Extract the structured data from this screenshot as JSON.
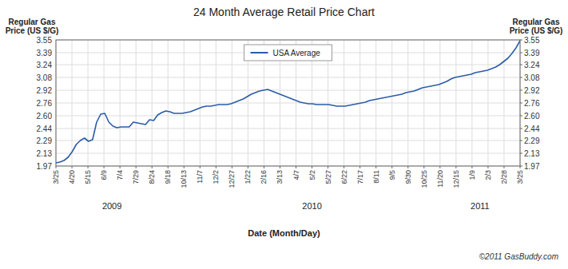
{
  "chart_data": {
    "type": "line",
    "title": "24 Month Average Retail Price Chart",
    "ylabel": "Regular Gas\nPrice (US $/G)",
    "y2label": "Regular Gas\nPrice (US $/G)",
    "xlabel": "Date (Month/Day)",
    "annotations": [
      {
        "text": "2009",
        "x": 3.5
      },
      {
        "text": "2010",
        "x": 16.0
      },
      {
        "text": "2011",
        "x": 26.5
      },
      {
        "text": "©2011 GasBuddy.com"
      }
    ],
    "grid": true,
    "legend": "upper center",
    "xlim": [
      0,
      29
    ],
    "xticks": [
      {
        "value": 0,
        "label": "3/25"
      },
      {
        "value": 1,
        "label": "4/20"
      },
      {
        "value": 2,
        "label": "5/15"
      },
      {
        "value": 3,
        "label": "6/9"
      },
      {
        "value": 4,
        "label": "7/4"
      },
      {
        "value": 5,
        "label": "7/29"
      },
      {
        "value": 6,
        "label": "8/24"
      },
      {
        "value": 7,
        "label": "9/18"
      },
      {
        "value": 8,
        "label": "10/13"
      },
      {
        "value": 9,
        "label": "11/7"
      },
      {
        "value": 10,
        "label": "12/2"
      },
      {
        "value": 11,
        "label": "12/27"
      },
      {
        "value": 12,
        "label": "1/22"
      },
      {
        "value": 13,
        "label": "2/16"
      },
      {
        "value": 14,
        "label": "3/13"
      },
      {
        "value": 15,
        "label": "4/7"
      },
      {
        "value": 16,
        "label": "5/2"
      },
      {
        "value": 17,
        "label": "5/27"
      },
      {
        "value": 18,
        "label": "6/22"
      },
      {
        "value": 19,
        "label": "7/17"
      },
      {
        "value": 20,
        "label": "8/11"
      },
      {
        "value": 21,
        "label": "9/5"
      },
      {
        "value": 22,
        "label": "9/30"
      },
      {
        "value": 23,
        "label": "10/25"
      },
      {
        "value": 24,
        "label": "11/20"
      },
      {
        "value": 25,
        "label": "12/15"
      },
      {
        "value": 26,
        "label": "1/9"
      },
      {
        "value": 27,
        "label": "2/3"
      },
      {
        "value": 28,
        "label": "2/28"
      },
      {
        "value": 29,
        "label": "3/25"
      }
    ],
    "ylim": [
      1.97,
      3.55
    ],
    "yticks": [
      1.97,
      2.13,
      2.29,
      2.44,
      {
        "value": 2.6,
        "label": "2.60"
      },
      2.76,
      2.92,
      3.08,
      3.24,
      3.39,
      3.55
    ],
    "y2lim": [
      1.97,
      3.55
    ],
    "y2ticks": [
      1.97,
      2.13,
      2.29,
      2.44,
      {
        "value": 2.6,
        "label": "2.60"
      },
      2.76,
      2.92,
      3.08,
      3.24,
      3.39,
      3.55
    ],
    "series": [
      {
        "name": "USA Average",
        "color": "#2b5ca8",
        "values": [
          2.01,
          2.02,
          2.04,
          2.08,
          2.15,
          2.24,
          2.29,
          2.32,
          2.28,
          2.3,
          2.52,
          2.62,
          2.63,
          2.52,
          2.47,
          2.45,
          2.46,
          2.46,
          2.46,
          2.52,
          2.51,
          2.5,
          2.49,
          2.55,
          2.54,
          2.61,
          2.64,
          2.66,
          2.65,
          2.63,
          2.63,
          2.63,
          2.64,
          2.65,
          2.67,
          2.69,
          2.71,
          2.72,
          2.72,
          2.73,
          2.74,
          2.74,
          2.74,
          2.75,
          2.77,
          2.79,
          2.81,
          2.84,
          2.87,
          2.89,
          2.91,
          2.92,
          2.93,
          2.91,
          2.89,
          2.87,
          2.85,
          2.83,
          2.81,
          2.79,
          2.77,
          2.76,
          2.75,
          2.75,
          2.74,
          2.74,
          2.74,
          2.74,
          2.73,
          2.72,
          2.72,
          2.72,
          2.73,
          2.74,
          2.75,
          2.76,
          2.77,
          2.79,
          2.8,
          2.81,
          2.82,
          2.83,
          2.84,
          2.85,
          2.86,
          2.87,
          2.89,
          2.9,
          2.91,
          2.93,
          2.95,
          2.96,
          2.97,
          2.98,
          2.99,
          3.01,
          3.03,
          3.06,
          3.08,
          3.09,
          3.1,
          3.11,
          3.12,
          3.14,
          3.15,
          3.16,
          3.17,
          3.19,
          3.21,
          3.24,
          3.28,
          3.32,
          3.38,
          3.45,
          3.54
        ]
      }
    ]
  }
}
